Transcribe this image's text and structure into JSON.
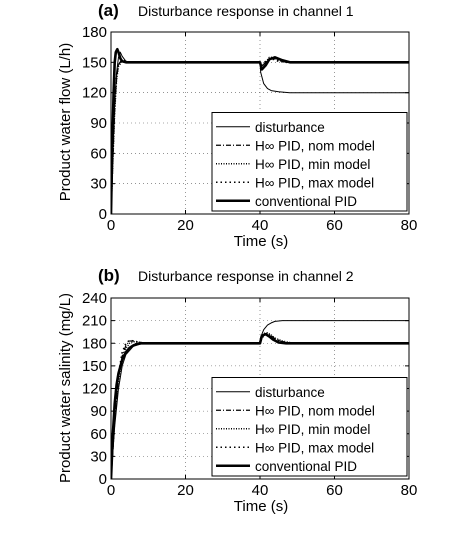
{
  "chart_data": [
    {
      "type": "line",
      "panel_label": "(a)",
      "title": "Disturbance response in channel 1",
      "xlabel": "Time (s)",
      "ylabel": "Product water flow (L/h)",
      "xlim": [
        0,
        80
      ],
      "ylim": [
        0,
        180
      ],
      "xticks": [
        0,
        20,
        40,
        60,
        80
      ],
      "yticks": [
        0,
        30,
        60,
        90,
        120,
        150,
        180
      ],
      "grid": true,
      "legend_position": "lower-right",
      "series": [
        {
          "name": "disturbance",
          "style": "thin-solid",
          "x": [
            0,
            0.5,
            1,
            1.5,
            2,
            2.5,
            3,
            4,
            5,
            7,
            10,
            40,
            40.2,
            41,
            42,
            43,
            45,
            48,
            52,
            56,
            80
          ],
          "y": [
            0,
            60,
            110,
            140,
            155,
            160,
            156,
            151,
            150,
            150,
            150,
            150,
            140,
            129,
            124,
            122,
            121,
            120,
            120,
            120,
            120
          ]
        },
        {
          "name": "H∞ PID, nom model",
          "style": "dash-dot",
          "x": [
            0,
            0.5,
            1,
            1.5,
            2,
            3,
            4,
            5,
            7,
            10,
            40,
            40.5,
            41.5,
            42.5,
            43.5,
            45,
            47,
            50,
            80
          ],
          "y": [
            0,
            55,
            105,
            135,
            148,
            152,
            151,
            150,
            150,
            150,
            150,
            146,
            150,
            154,
            154,
            152,
            150,
            150,
            150
          ]
        },
        {
          "name": "H∞ PID, min model",
          "style": "dotted",
          "x": [
            0,
            0.5,
            1,
            1.5,
            2,
            3,
            4,
            5,
            7,
            10,
            40,
            40.5,
            41.5,
            42.5,
            43.5,
            45,
            47,
            50,
            80
          ],
          "y": [
            0,
            52,
            100,
            132,
            146,
            151,
            151,
            150,
            150,
            150,
            150,
            146,
            150,
            155,
            155,
            152,
            150,
            150,
            150
          ]
        },
        {
          "name": "H∞ PID, max model",
          "style": "coarse-dotted",
          "x": [
            0,
            0.5,
            1,
            1.5,
            2,
            3,
            4,
            5,
            7,
            10,
            40,
            40.5,
            41.5,
            42.5,
            43.5,
            45,
            47,
            50,
            80
          ],
          "y": [
            0,
            58,
            108,
            138,
            149,
            152,
            151,
            150,
            150,
            150,
            150,
            147,
            151,
            153,
            153,
            151,
            150,
            150,
            150
          ]
        },
        {
          "name": "conventional PID",
          "style": "thick-solid",
          "x": [
            0,
            0.3,
            0.7,
            1,
            1.3,
            1.7,
            2,
            2.5,
            3,
            4,
            5,
            7,
            10,
            40,
            40.5,
            41.5,
            42.5,
            44,
            46,
            48,
            52,
            80
          ],
          "y": [
            0,
            60,
            120,
            150,
            160,
            163,
            160,
            154,
            151,
            150,
            150,
            150,
            150,
            150,
            143,
            147,
            153,
            155,
            152,
            150,
            150,
            150
          ]
        }
      ]
    },
    {
      "type": "line",
      "panel_label": "(b)",
      "title": "Disturbance response in channel 2",
      "xlabel": "Time (s)",
      "ylabel": "Product water salinity (mg/L)",
      "xlim": [
        0,
        80
      ],
      "ylim": [
        0,
        240
      ],
      "xticks": [
        0,
        20,
        40,
        60,
        80
      ],
      "yticks": [
        0,
        30,
        60,
        90,
        120,
        150,
        180,
        210,
        240
      ],
      "grid": true,
      "legend_position": "lower-right",
      "series": [
        {
          "name": "disturbance",
          "style": "thin-solid",
          "x": [
            0,
            1,
            2,
            3,
            4,
            6,
            8,
            10,
            40,
            40.2,
            41,
            42,
            43,
            44,
            46,
            50,
            80
          ],
          "y": [
            0,
            70,
            120,
            150,
            165,
            176,
            179,
            180,
            180,
            188,
            198,
            204,
            207,
            209,
            210,
            210,
            210
          ]
        },
        {
          "name": "H∞ PID, nom model",
          "style": "dash-dot",
          "x": [
            0,
            1,
            2,
            3,
            4,
            5,
            6,
            8,
            10,
            40,
            40.3,
            41,
            42,
            43,
            44,
            46,
            48,
            50,
            80
          ],
          "y": [
            0,
            80,
            135,
            163,
            177,
            183,
            183,
            181,
            180,
            180,
            186,
            192,
            193,
            190,
            186,
            182,
            180,
            180,
            180
          ]
        },
        {
          "name": "H∞ PID, min model",
          "style": "dotted",
          "x": [
            0,
            1,
            2,
            3,
            4,
            5,
            6,
            8,
            10,
            40,
            40.3,
            41,
            42,
            43,
            44,
            46,
            48,
            50,
            80
          ],
          "y": [
            0,
            75,
            128,
            158,
            173,
            180,
            182,
            181,
            180,
            180,
            187,
            193,
            194,
            191,
            187,
            183,
            181,
            180,
            180
          ]
        },
        {
          "name": "H∞ PID, max model",
          "style": "coarse-dotted",
          "x": [
            0,
            1,
            2,
            3,
            4,
            5,
            6,
            8,
            10,
            40,
            40.3,
            41,
            42,
            43,
            44,
            46,
            48,
            50,
            80
          ],
          "y": [
            0,
            85,
            140,
            168,
            180,
            184,
            183,
            181,
            180,
            180,
            185,
            190,
            191,
            189,
            185,
            182,
            180,
            180,
            180
          ]
        },
        {
          "name": "conventional PID",
          "style": "thick-solid",
          "x": [
            0,
            0.5,
            1,
            1.5,
            2,
            3,
            4,
            5,
            6,
            7,
            8,
            10,
            40,
            40.5,
            41.5,
            42.5,
            43.5,
            45,
            47,
            80
          ],
          "y": [
            0,
            60,
            100,
            125,
            140,
            158,
            168,
            174,
            177,
            179,
            180,
            180,
            180,
            190,
            192,
            189,
            185,
            181,
            180,
            180
          ]
        }
      ]
    }
  ]
}
